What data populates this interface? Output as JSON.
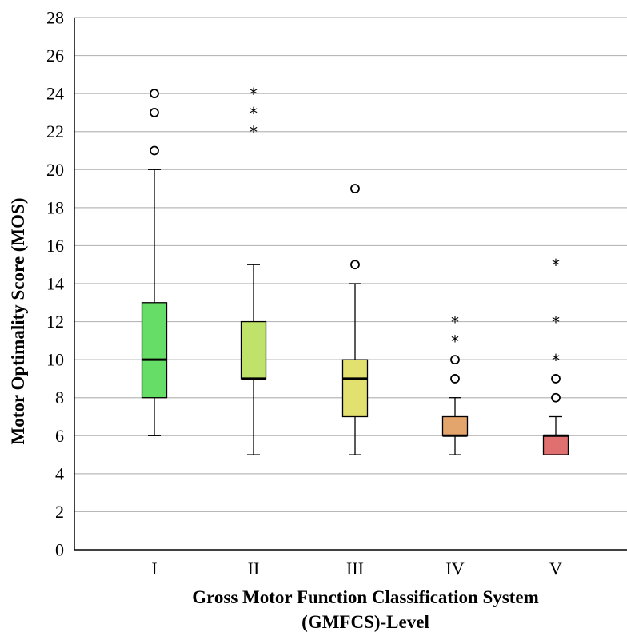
{
  "chart_data": {
    "type": "boxplot",
    "xlabel": "Gross Motor Function Classification System (GMFCS)-Level",
    "xlabel_lines": [
      "Gross Motor Function Classification System",
      "(GMFCS)-Level"
    ],
    "ylabel": "Motor Optimality Score (MOS)",
    "ylim": [
      0,
      28
    ],
    "yticks": [
      0,
      2,
      4,
      6,
      8,
      10,
      12,
      14,
      16,
      18,
      20,
      22,
      24,
      26,
      28
    ],
    "grid": true,
    "categories": [
      "I",
      "II",
      "III",
      "IV",
      "V"
    ],
    "boxes": [
      {
        "category": "I",
        "whisker_low": 6,
        "q1": 8,
        "median": 10,
        "q3": 13,
        "whisker_high": 20,
        "outliers": [
          21,
          23,
          24
        ],
        "extremes": [],
        "color": "#66dd66"
      },
      {
        "category": "II",
        "whisker_low": 5,
        "q1": 9,
        "median": 9,
        "q3": 12,
        "whisker_high": 15,
        "outliers": [],
        "extremes": [
          22,
          23,
          24
        ],
        "color": "#bfe36a"
      },
      {
        "category": "III",
        "whisker_low": 5,
        "q1": 7,
        "median": 9,
        "q3": 10,
        "whisker_high": 14,
        "outliers": [
          15,
          19
        ],
        "extremes": [],
        "color": "#e2e06e"
      },
      {
        "category": "IV",
        "whisker_low": 5,
        "q1": 6,
        "median": 6,
        "q3": 7,
        "whisker_high": 8,
        "outliers": [
          9,
          10
        ],
        "extremes": [
          11,
          12
        ],
        "color": "#e3a56c"
      },
      {
        "category": "V",
        "whisker_low": 5,
        "q1": 5,
        "median": 6,
        "q3": 6,
        "whisker_high": 7,
        "outliers": [
          8,
          9
        ],
        "extremes": [
          10,
          12,
          15
        ],
        "color": "#e06f6f"
      }
    ]
  }
}
